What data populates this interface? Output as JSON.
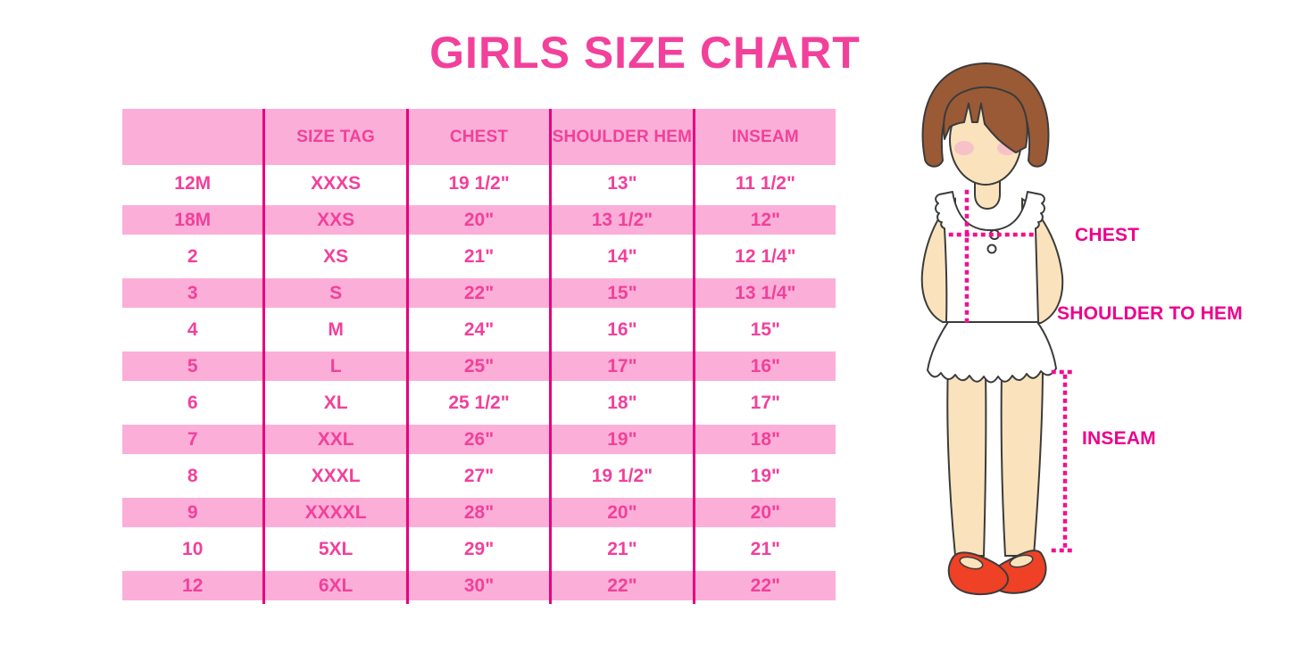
{
  "title": "GIRLS SIZE CHART",
  "chart_data": {
    "type": "table",
    "title": "GIRLS SIZE CHART",
    "columns": [
      "",
      "SIZE TAG",
      "CHEST",
      "SHOULDER HEM",
      "INSEAM"
    ],
    "rows": [
      [
        "12M",
        "XXXS",
        "19 1/2\"",
        "13\"",
        "11 1/2\""
      ],
      [
        "18M",
        "XXS",
        "20\"",
        "13 1/2\"",
        "12\""
      ],
      [
        "2",
        "XS",
        "21\"",
        "14\"",
        "12 1/4\""
      ],
      [
        "3",
        "S",
        "22\"",
        "15\"",
        "13 1/4\""
      ],
      [
        "4",
        "M",
        "24\"",
        "16\"",
        "15\""
      ],
      [
        "5",
        "L",
        "25\"",
        "17\"",
        "16\""
      ],
      [
        "6",
        "XL",
        "25 1/2\"",
        "18\"",
        "17\""
      ],
      [
        "7",
        "XXL",
        "26\"",
        "19\"",
        "18\""
      ],
      [
        "8",
        "XXXL",
        "27\"",
        "19 1/2\"",
        "19\""
      ],
      [
        "9",
        "XXXXL",
        "28\"",
        "20\"",
        "20\""
      ],
      [
        "10",
        "5XL",
        "29\"",
        "21\"",
        "21\""
      ],
      [
        "12",
        "6XL",
        "30\"",
        "22\"",
        "22\""
      ]
    ],
    "layout_hints": "header row pink, data rows alternate white/pink starting white; magenta vertical column separators; no horizontal rules"
  },
  "diagram": {
    "labels": {
      "chest": "CHEST",
      "shoulder_to_hem": "SHOULDER TO HEM",
      "inseam": "INSEAM"
    }
  },
  "colors": {
    "title_pink": "#F2409B",
    "row_pink": "#FBAFD8",
    "table_text_pink": "#F2409B",
    "separator_magenta": "#E6007F",
    "label_magenta": "#EC008C",
    "dotted_line_pink": "#F2108F",
    "hair_brown": "#9A5A36",
    "skin": "#FAE3BC",
    "blush": "#F5BCC8",
    "shoe_red": "#EE4125",
    "outline": "#3B3B3B"
  }
}
